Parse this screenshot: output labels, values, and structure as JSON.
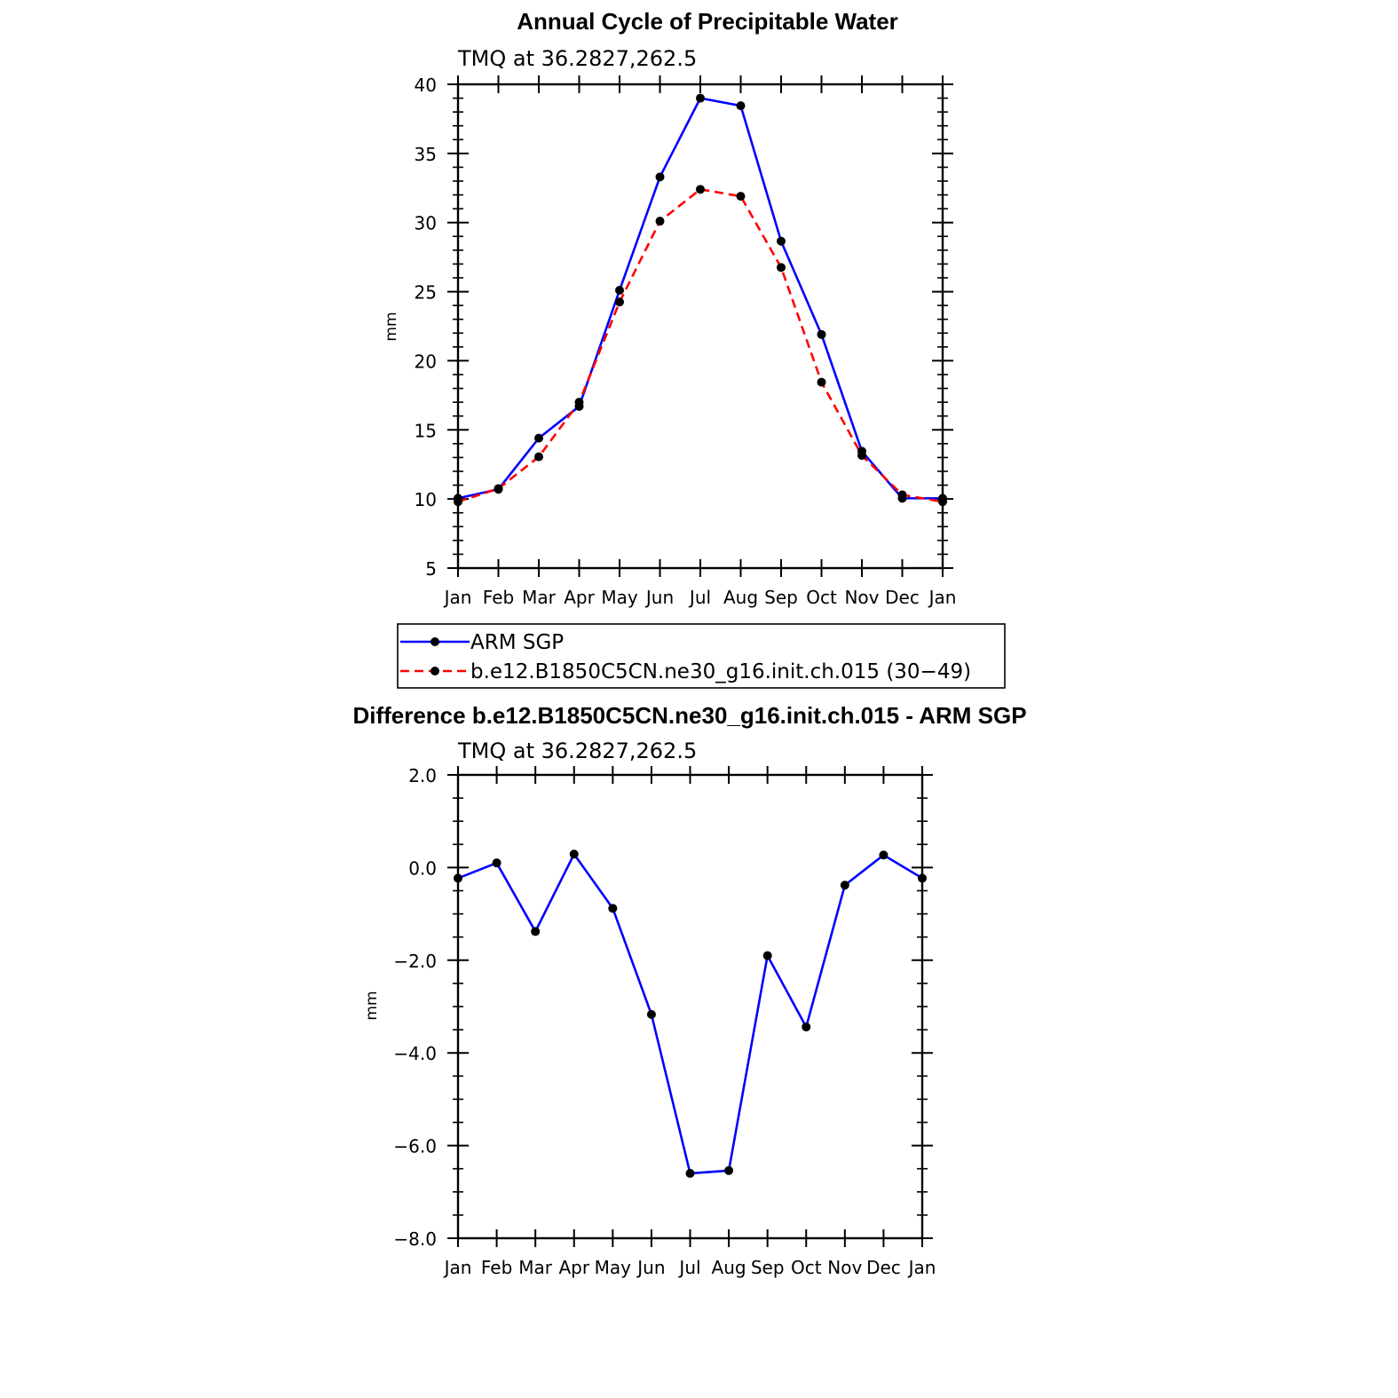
{
  "chart_data": [
    {
      "type": "line",
      "title": "Annual Cycle of Precipitable Water",
      "subtitle": "TMQ at 36.2827,262.5",
      "xlabel": "",
      "ylabel": "mm",
      "categories": [
        "Jan",
        "Feb",
        "Mar",
        "Apr",
        "May",
        "Jun",
        "Jul",
        "Aug",
        "Sep",
        "Oct",
        "Nov",
        "Dec",
        "Jan"
      ],
      "ylim": [
        5,
        40
      ],
      "yticks": [
        "5",
        "10",
        "15",
        "20",
        "25",
        "30",
        "35",
        "40"
      ],
      "legend_position": "bottom",
      "series": [
        {
          "name": "ARM SGP",
          "color": "#0000ff",
          "dash": "solid",
          "values": [
            10.05,
            10.7,
            14.4,
            16.7,
            25.1,
            33.3,
            39.0,
            38.45,
            28.65,
            21.9,
            13.45,
            10.05,
            10.05
          ]
        },
        {
          "name": "b.e12.B1850C5CN.ne30_g16.init.ch.015 (30−49)",
          "color": "#ff0000",
          "dash": "dashed",
          "values": [
            9.8,
            10.75,
            13.05,
            17.0,
            24.25,
            30.1,
            32.4,
            31.9,
            26.75,
            18.45,
            13.15,
            10.3,
            9.8
          ]
        }
      ]
    },
    {
      "type": "line",
      "title": "Difference b.e12.B1850C5CN.ne30_g16.init.ch.015 - ARM SGP",
      "subtitle": "TMQ at 36.2827,262.5",
      "xlabel": "",
      "ylabel": "mm",
      "categories": [
        "Jan",
        "Feb",
        "Mar",
        "Apr",
        "May",
        "Jun",
        "Jul",
        "Aug",
        "Sep",
        "Oct",
        "Nov",
        "Dec",
        "Jan"
      ],
      "ylim": [
        -8,
        2
      ],
      "yticks": [
        "−8.0",
        "−6.0",
        "−4.0",
        "−2.0",
        "0.0",
        "2.0"
      ],
      "series": [
        {
          "color": "#0000ff",
          "dash": "solid",
          "values": [
            -0.23,
            0.1,
            -1.38,
            0.29,
            -0.88,
            -3.17,
            -6.6,
            -6.54,
            -1.9,
            -3.44,
            -0.38,
            0.27,
            -0.23
          ]
        }
      ]
    }
  ]
}
